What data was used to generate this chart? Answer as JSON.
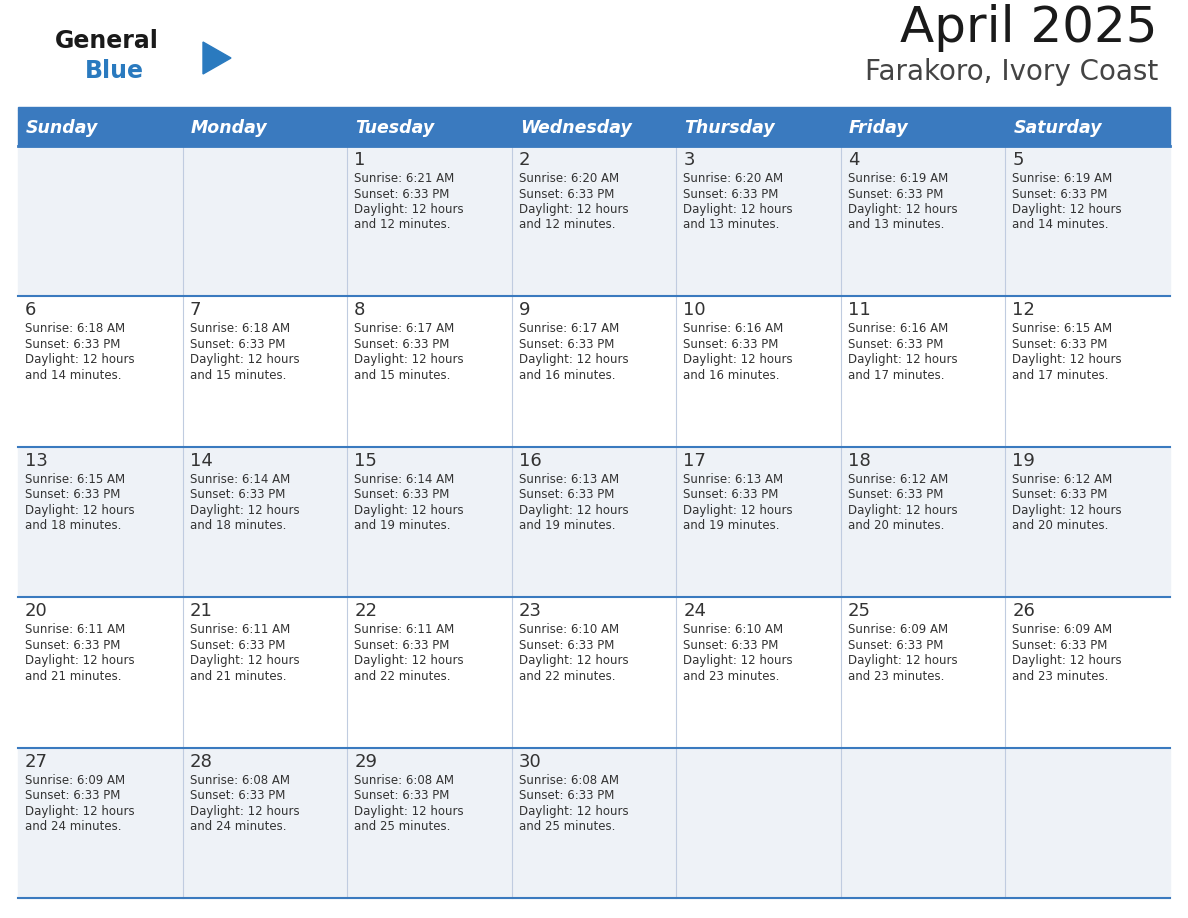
{
  "title": "April 2025",
  "subtitle": "Farakoro, Ivory Coast",
  "days_of_week": [
    "Sunday",
    "Monday",
    "Tuesday",
    "Wednesday",
    "Thursday",
    "Friday",
    "Saturday"
  ],
  "header_bg": "#3a7abf",
  "header_text": "#ffffff",
  "row_bg_even": "#eef2f7",
  "row_bg_odd": "#ffffff",
  "border_color": "#3a7abf",
  "sep_color": "#c0cce0",
  "text_color": "#333333",
  "title_color": "#1a1a1a",
  "subtitle_color": "#444444",
  "logo_general_color": "#1a1a1a",
  "logo_blue_color": "#2a7abf",
  "logo_tri_color": "#2a7abf",
  "weeks": [
    {
      "days": [
        {
          "date": "",
          "sunrise": "",
          "sunset": "",
          "daylight": ""
        },
        {
          "date": "",
          "sunrise": "",
          "sunset": "",
          "daylight": ""
        },
        {
          "date": "1",
          "sunrise": "6:21 AM",
          "sunset": "6:33 PM",
          "daylight": "12 hours and 12 minutes."
        },
        {
          "date": "2",
          "sunrise": "6:20 AM",
          "sunset": "6:33 PM",
          "daylight": "12 hours and 12 minutes."
        },
        {
          "date": "3",
          "sunrise": "6:20 AM",
          "sunset": "6:33 PM",
          "daylight": "12 hours and 13 minutes."
        },
        {
          "date": "4",
          "sunrise": "6:19 AM",
          "sunset": "6:33 PM",
          "daylight": "12 hours and 13 minutes."
        },
        {
          "date": "5",
          "sunrise": "6:19 AM",
          "sunset": "6:33 PM",
          "daylight": "12 hours and 14 minutes."
        }
      ]
    },
    {
      "days": [
        {
          "date": "6",
          "sunrise": "6:18 AM",
          "sunset": "6:33 PM",
          "daylight": "12 hours and 14 minutes."
        },
        {
          "date": "7",
          "sunrise": "6:18 AM",
          "sunset": "6:33 PM",
          "daylight": "12 hours and 15 minutes."
        },
        {
          "date": "8",
          "sunrise": "6:17 AM",
          "sunset": "6:33 PM",
          "daylight": "12 hours and 15 minutes."
        },
        {
          "date": "9",
          "sunrise": "6:17 AM",
          "sunset": "6:33 PM",
          "daylight": "12 hours and 16 minutes."
        },
        {
          "date": "10",
          "sunrise": "6:16 AM",
          "sunset": "6:33 PM",
          "daylight": "12 hours and 16 minutes."
        },
        {
          "date": "11",
          "sunrise": "6:16 AM",
          "sunset": "6:33 PM",
          "daylight": "12 hours and 17 minutes."
        },
        {
          "date": "12",
          "sunrise": "6:15 AM",
          "sunset": "6:33 PM",
          "daylight": "12 hours and 17 minutes."
        }
      ]
    },
    {
      "days": [
        {
          "date": "13",
          "sunrise": "6:15 AM",
          "sunset": "6:33 PM",
          "daylight": "12 hours and 18 minutes."
        },
        {
          "date": "14",
          "sunrise": "6:14 AM",
          "sunset": "6:33 PM",
          "daylight": "12 hours and 18 minutes."
        },
        {
          "date": "15",
          "sunrise": "6:14 AM",
          "sunset": "6:33 PM",
          "daylight": "12 hours and 19 minutes."
        },
        {
          "date": "16",
          "sunrise": "6:13 AM",
          "sunset": "6:33 PM",
          "daylight": "12 hours and 19 minutes."
        },
        {
          "date": "17",
          "sunrise": "6:13 AM",
          "sunset": "6:33 PM",
          "daylight": "12 hours and 19 minutes."
        },
        {
          "date": "18",
          "sunrise": "6:12 AM",
          "sunset": "6:33 PM",
          "daylight": "12 hours and 20 minutes."
        },
        {
          "date": "19",
          "sunrise": "6:12 AM",
          "sunset": "6:33 PM",
          "daylight": "12 hours and 20 minutes."
        }
      ]
    },
    {
      "days": [
        {
          "date": "20",
          "sunrise": "6:11 AM",
          "sunset": "6:33 PM",
          "daylight": "12 hours and 21 minutes."
        },
        {
          "date": "21",
          "sunrise": "6:11 AM",
          "sunset": "6:33 PM",
          "daylight": "12 hours and 21 minutes."
        },
        {
          "date": "22",
          "sunrise": "6:11 AM",
          "sunset": "6:33 PM",
          "daylight": "12 hours and 22 minutes."
        },
        {
          "date": "23",
          "sunrise": "6:10 AM",
          "sunset": "6:33 PM",
          "daylight": "12 hours and 22 minutes."
        },
        {
          "date": "24",
          "sunrise": "6:10 AM",
          "sunset": "6:33 PM",
          "daylight": "12 hours and 23 minutes."
        },
        {
          "date": "25",
          "sunrise": "6:09 AM",
          "sunset": "6:33 PM",
          "daylight": "12 hours and 23 minutes."
        },
        {
          "date": "26",
          "sunrise": "6:09 AM",
          "sunset": "6:33 PM",
          "daylight": "12 hours and 23 minutes."
        }
      ]
    },
    {
      "days": [
        {
          "date": "27",
          "sunrise": "6:09 AM",
          "sunset": "6:33 PM",
          "daylight": "12 hours and 24 minutes."
        },
        {
          "date": "28",
          "sunrise": "6:08 AM",
          "sunset": "6:33 PM",
          "daylight": "12 hours and 24 minutes."
        },
        {
          "date": "29",
          "sunrise": "6:08 AM",
          "sunset": "6:33 PM",
          "daylight": "12 hours and 25 minutes."
        },
        {
          "date": "30",
          "sunrise": "6:08 AM",
          "sunset": "6:33 PM",
          "daylight": "12 hours and 25 minutes."
        },
        {
          "date": "",
          "sunrise": "",
          "sunset": "",
          "daylight": ""
        },
        {
          "date": "",
          "sunrise": "",
          "sunset": "",
          "daylight": ""
        },
        {
          "date": "",
          "sunrise": "",
          "sunset": "",
          "daylight": ""
        }
      ]
    }
  ]
}
